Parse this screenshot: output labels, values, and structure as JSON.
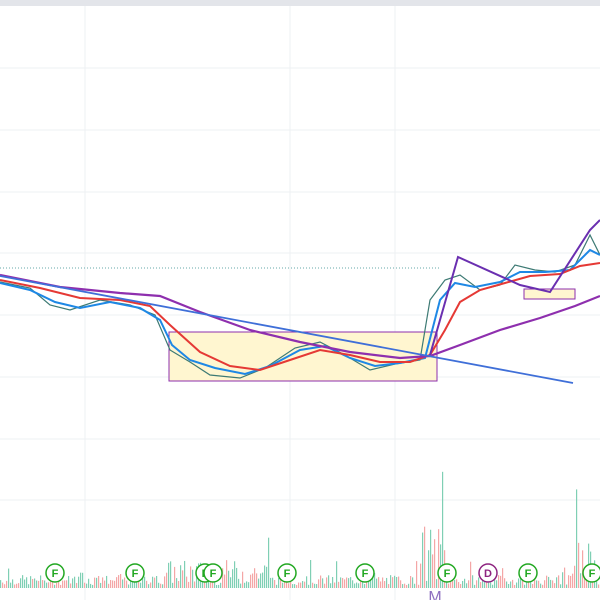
{
  "event_markers": [
    {
      "label": "F"
    },
    {
      "label": "F"
    },
    {
      "label": "F"
    },
    {
      "label": "F"
    },
    {
      "label": "F"
    },
    {
      "label": "F"
    },
    {
      "label": "F"
    },
    {
      "label": "D"
    },
    {
      "label": "F"
    },
    {
      "label": "F"
    }
  ],
  "time_axis_label": "M"
}
